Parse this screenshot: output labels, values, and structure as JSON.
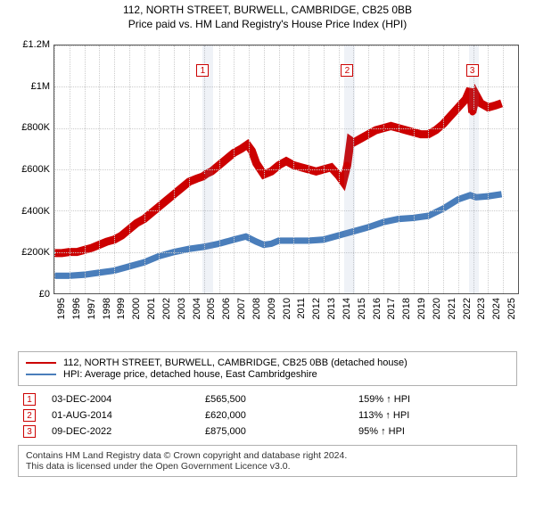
{
  "title_line1": "112, NORTH STREET, BURWELL, CAMBRIDGE, CB25 0BB",
  "title_line2": "Price paid vs. HM Land Registry's House Price Index (HPI)",
  "chart": {
    "type": "line",
    "x_start": 1995,
    "x_end": 2026,
    "y_min": 0,
    "y_max": 1200000,
    "y_tick_step": 200000,
    "y_tick_labels": [
      "£0",
      "£200K",
      "£400K",
      "£600K",
      "£800K",
      "£1M",
      "£1.2M"
    ],
    "x_ticks": [
      1995,
      1996,
      1997,
      1998,
      1999,
      2000,
      2001,
      2002,
      2003,
      2004,
      2005,
      2006,
      2007,
      2008,
      2009,
      2010,
      2011,
      2012,
      2013,
      2014,
      2015,
      2016,
      2017,
      2018,
      2019,
      2020,
      2021,
      2022,
      2023,
      2024,
      2025
    ],
    "grid_color": "#cccccc",
    "bands": [
      {
        "start": 2004.9,
        "end": 2005.6
      },
      {
        "start": 2014.4,
        "end": 2015.1
      },
      {
        "start": 2022.7,
        "end": 2023.4
      }
    ],
    "series": [
      {
        "name": "price_paid",
        "color": "#cc0000",
        "width": 1.5,
        "points": [
          [
            1995.0,
            195000
          ],
          [
            1995.5,
            195000
          ],
          [
            1996.0,
            200000
          ],
          [
            1996.5,
            200000
          ],
          [
            1997.0,
            210000
          ],
          [
            1997.5,
            220000
          ],
          [
            1998.0,
            235000
          ],
          [
            1998.5,
            250000
          ],
          [
            1999.0,
            260000
          ],
          [
            1999.5,
            280000
          ],
          [
            2000.0,
            310000
          ],
          [
            2000.5,
            340000
          ],
          [
            2001.0,
            360000
          ],
          [
            2001.5,
            390000
          ],
          [
            2002.0,
            420000
          ],
          [
            2002.5,
            450000
          ],
          [
            2003.0,
            480000
          ],
          [
            2003.5,
            510000
          ],
          [
            2004.0,
            540000
          ],
          [
            2004.5,
            555000
          ],
          [
            2004.92,
            565500
          ],
          [
            2005.2,
            580000
          ],
          [
            2005.5,
            590000
          ],
          [
            2006.0,
            620000
          ],
          [
            2006.5,
            650000
          ],
          [
            2007.0,
            680000
          ],
          [
            2007.5,
            700000
          ],
          [
            2007.9,
            720000
          ],
          [
            2008.2,
            690000
          ],
          [
            2008.5,
            630000
          ],
          [
            2009.0,
            575000
          ],
          [
            2009.5,
            590000
          ],
          [
            2010.0,
            620000
          ],
          [
            2010.5,
            640000
          ],
          [
            2011.0,
            620000
          ],
          [
            2011.5,
            610000
          ],
          [
            2012.0,
            600000
          ],
          [
            2012.5,
            590000
          ],
          [
            2013.0,
            600000
          ],
          [
            2013.5,
            610000
          ],
          [
            2014.0,
            570000
          ],
          [
            2014.3,
            540000
          ],
          [
            2014.58,
            620000
          ],
          [
            2014.8,
            740000
          ],
          [
            2015.0,
            730000
          ],
          [
            2015.5,
            750000
          ],
          [
            2016.0,
            770000
          ],
          [
            2016.5,
            790000
          ],
          [
            2017.0,
            800000
          ],
          [
            2017.5,
            810000
          ],
          [
            2018.0,
            800000
          ],
          [
            2018.5,
            790000
          ],
          [
            2019.0,
            780000
          ],
          [
            2019.5,
            770000
          ],
          [
            2020.0,
            770000
          ],
          [
            2020.5,
            790000
          ],
          [
            2021.0,
            820000
          ],
          [
            2021.5,
            860000
          ],
          [
            2022.0,
            900000
          ],
          [
            2022.5,
            940000
          ],
          [
            2022.8,
            990000
          ],
          [
            2022.94,
            875000
          ],
          [
            2023.2,
            960000
          ],
          [
            2023.5,
            920000
          ],
          [
            2024.0,
            900000
          ],
          [
            2024.5,
            910000
          ],
          [
            2024.9,
            920000
          ]
        ]
      },
      {
        "name": "hpi",
        "color": "#4a7ebb",
        "width": 1.2,
        "points": [
          [
            1995.0,
            85000
          ],
          [
            1996.0,
            85000
          ],
          [
            1997.0,
            90000
          ],
          [
            1998.0,
            100000
          ],
          [
            1999.0,
            110000
          ],
          [
            2000.0,
            130000
          ],
          [
            2001.0,
            150000
          ],
          [
            2002.0,
            180000
          ],
          [
            2003.0,
            200000
          ],
          [
            2004.0,
            215000
          ],
          [
            2005.0,
            225000
          ],
          [
            2006.0,
            240000
          ],
          [
            2007.0,
            260000
          ],
          [
            2007.8,
            275000
          ],
          [
            2008.5,
            250000
          ],
          [
            2009.0,
            235000
          ],
          [
            2009.5,
            240000
          ],
          [
            2010.0,
            255000
          ],
          [
            2011.0,
            255000
          ],
          [
            2012.0,
            255000
          ],
          [
            2013.0,
            260000
          ],
          [
            2014.0,
            280000
          ],
          [
            2015.0,
            300000
          ],
          [
            2016.0,
            320000
          ],
          [
            2017.0,
            345000
          ],
          [
            2018.0,
            360000
          ],
          [
            2019.0,
            365000
          ],
          [
            2020.0,
            375000
          ],
          [
            2021.0,
            410000
          ],
          [
            2022.0,
            455000
          ],
          [
            2022.8,
            475000
          ],
          [
            2023.2,
            465000
          ],
          [
            2024.0,
            470000
          ],
          [
            2024.9,
            480000
          ]
        ]
      }
    ],
    "sale_markers": [
      {
        "n": "1",
        "x": 2004.92,
        "y": 565500,
        "box_y": 1080000
      },
      {
        "n": "2",
        "x": 2014.58,
        "y": 620000,
        "box_y": 1080000
      },
      {
        "n": "3",
        "x": 2022.94,
        "y": 875000,
        "box_y": 1080000
      }
    ]
  },
  "legend": {
    "series1": {
      "color": "#cc0000",
      "label": "112, NORTH STREET, BURWELL, CAMBRIDGE, CB25 0BB (detached house)"
    },
    "series2": {
      "color": "#4a7ebb",
      "label": "HPI: Average price, detached house, East Cambridgeshire"
    }
  },
  "sales": [
    {
      "n": "1",
      "date": "03-DEC-2004",
      "price": "£565,500",
      "delta": "159% ↑ HPI"
    },
    {
      "n": "2",
      "date": "01-AUG-2014",
      "price": "£620,000",
      "delta": "113% ↑ HPI"
    },
    {
      "n": "3",
      "date": "09-DEC-2022",
      "price": "£875,000",
      "delta": "95% ↑ HPI"
    }
  ],
  "footer_line1": "Contains HM Land Registry data © Crown copyright and database right 2024.",
  "footer_line2": "This data is licensed under the Open Government Licence v3.0."
}
